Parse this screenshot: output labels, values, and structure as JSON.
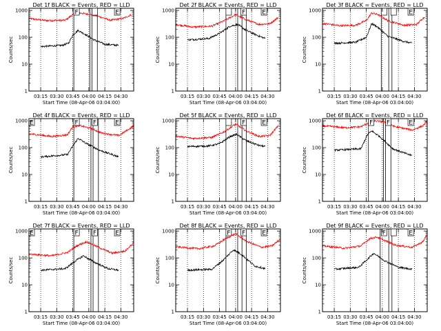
{
  "chart_data": [
    {
      "type": "line",
      "title": "Det 1f BLACK = Events, RED = LLD",
      "xlabel": "Start Time (08-Apr-06 03:04:00)",
      "ylabel": "Counts/sec",
      "x_ticks": [
        "03:15",
        "03:30",
        "03:45",
        "04:00",
        "04:15",
        "04:30"
      ],
      "y_ticks": [
        "1",
        "10",
        "100",
        "1000"
      ],
      "yscale": "log",
      "xlim": [
        "03:04",
        "04:42"
      ],
      "ylim": [
        1,
        1200
      ],
      "grid": "vertical dotted at major x ticks",
      "markers": [
        {
          "label": "F",
          "x": "03:46"
        },
        {
          "label": "",
          "x": "04:03"
        },
        {
          "label": "E",
          "x": "04:24"
        }
      ],
      "interval_lines": [
        "03:46",
        "04:01",
        "04:03",
        "04:08"
      ],
      "series": [
        {
          "color": "#ff0000",
          "x": [
            "03:04",
            "03:20",
            "03:38",
            "03:45",
            "03:52",
            "04:00",
            "04:08",
            "04:20",
            "04:32",
            "04:40"
          ],
          "values": [
            500,
            420,
            430,
            700,
            800,
            720,
            620,
            430,
            500,
            700
          ]
        },
        {
          "color": "#000000",
          "x": [
            "03:15",
            "03:35",
            "03:41",
            "03:45",
            "03:50",
            "03:58",
            "04:05",
            "04:15",
            "04:28"
          ],
          "values": [
            45,
            50,
            60,
            120,
            180,
            120,
            80,
            55,
            50
          ]
        }
      ]
    },
    {
      "type": "line",
      "title": "Det 2f BLACK = Events, RED = LLD",
      "xlabel": "Start Time (08-Apr-06 03:04:00)",
      "ylabel": "Counts/sec",
      "x_ticks": [
        "03:15",
        "03:30",
        "03:45",
        "04:00",
        "04:15",
        "04:30"
      ],
      "y_ticks": [
        "1",
        "10",
        "100",
        "1000"
      ],
      "yscale": "log",
      "xlim": [
        "03:04",
        "04:42"
      ],
      "ylim": [
        1,
        1200
      ],
      "grid": "vertical dotted at major x ticks",
      "markers": [
        {
          "label": "",
          "x": "03:51"
        },
        {
          "label": "F",
          "x": "04:05"
        },
        {
          "label": "E",
          "x": "04:24"
        }
      ],
      "interval_lines": [
        "03:51",
        "04:02",
        "04:06",
        "04:10"
      ],
      "series": [
        {
          "color": "#ff0000",
          "x": [
            "03:04",
            "03:20",
            "03:38",
            "03:50",
            "04:00",
            "04:10",
            "04:22",
            "04:32",
            "04:40"
          ],
          "values": [
            300,
            240,
            260,
            420,
            700,
            450,
            300,
            320,
            550
          ]
        },
        {
          "color": "#000000",
          "x": [
            "03:15",
            "03:35",
            "03:45",
            "03:55",
            "04:02",
            "04:10",
            "04:22",
            "04:28"
          ],
          "values": [
            80,
            90,
            140,
            260,
            300,
            180,
            110,
            90
          ]
        }
      ]
    },
    {
      "type": "line",
      "title": "Det 3f BLACK = Events, RED = LLD",
      "xlabel": "Start Time (08-Apr-06 03:04:00)",
      "ylabel": "Counts/sec",
      "x_ticks": [
        "03:15",
        "03:30",
        "03:45",
        "04:00",
        "04:15",
        "04:30"
      ],
      "y_ticks": [
        "1",
        "10",
        "100",
        "1000"
      ],
      "yscale": "log",
      "xlim": [
        "03:04",
        "04:42"
      ],
      "ylim": [
        1,
        1200
      ],
      "grid": "vertical dotted at major x ticks",
      "markers": [
        {
          "label": "",
          "x": "03:59"
        },
        {
          "label": "",
          "x": "04:08"
        },
        {
          "label": "E",
          "x": "04:24"
        }
      ],
      "interval_lines": [
        "03:59",
        "04:06",
        "04:09"
      ],
      "series": [
        {
          "color": "#ff0000",
          "x": [
            "03:04",
            "03:20",
            "03:35",
            "03:45",
            "03:50",
            "03:56",
            "04:05",
            "04:20",
            "04:32",
            "04:40"
          ],
          "values": [
            330,
            270,
            280,
            420,
            800,
            700,
            420,
            280,
            300,
            600
          ]
        },
        {
          "color": "#000000",
          "x": [
            "03:15",
            "03:35",
            "03:45",
            "03:50",
            "03:55",
            "04:05",
            "04:20",
            "04:28"
          ],
          "values": [
            60,
            65,
            100,
            320,
            250,
            110,
            70,
            60
          ]
        }
      ]
    },
    {
      "type": "line",
      "title": "Det 4f BLACK = Events, RED = LLD",
      "xlabel": "Start Time (08-Apr-06 03:04:00)",
      "ylabel": "Counts/sec",
      "x_ticks": [
        "03:15",
        "03:30",
        "03:45",
        "04:00",
        "04:15",
        "04:30"
      ],
      "y_ticks": [
        "1",
        "10",
        "100",
        "1000"
      ],
      "yscale": "log",
      "xlim": [
        "03:04",
        "04:42"
      ],
      "ylim": [
        1,
        1200
      ],
      "grid": "vertical dotted at major x ticks",
      "markers": [
        {
          "label": "E",
          "x": "03:04"
        },
        {
          "label": "F",
          "x": "03:46"
        },
        {
          "label": "F",
          "x": "04:03"
        },
        {
          "label": "E",
          "x": "04:24"
        }
      ],
      "interval_lines": [
        "03:46",
        "04:02",
        "04:04",
        "04:09"
      ],
      "series": [
        {
          "color": "#ff0000",
          "x": [
            "03:04",
            "03:25",
            "03:40",
            "03:45",
            "03:52",
            "04:02",
            "04:12",
            "04:28",
            "04:38",
            "04:42"
          ],
          "values": [
            330,
            260,
            300,
            600,
            650,
            520,
            350,
            280,
            500,
            650
          ]
        },
        {
          "color": "#000000",
          "x": [
            "03:15",
            "03:40",
            "03:46",
            "03:50",
            "03:58",
            "04:10",
            "04:22",
            "04:28"
          ],
          "values": [
            45,
            55,
            130,
            220,
            140,
            80,
            55,
            45
          ]
        }
      ]
    },
    {
      "type": "line",
      "title": "Det 5f BLACK = Events, RED = LLD",
      "xlabel": "Start Time (08-Apr-06 03:04:00)",
      "ylabel": "Counts/sec",
      "x_ticks": [
        "03:15",
        "03:30",
        "03:45",
        "04:00",
        "04:15",
        "04:30"
      ],
      "y_ticks": [
        "1",
        "10",
        "100",
        "1000"
      ],
      "yscale": "log",
      "xlim": [
        "03:04",
        "04:42"
      ],
      "ylim": [
        1,
        1200
      ],
      "grid": "vertical dotted at major x ticks",
      "markers": [
        {
          "label": "",
          "x": "03:51"
        },
        {
          "label": "F",
          "x": "04:05"
        },
        {
          "label": "E",
          "x": "04:24"
        }
      ],
      "interval_lines": [
        "03:51",
        "04:02",
        "04:06",
        "04:10"
      ],
      "series": [
        {
          "color": "#ff0000",
          "x": [
            "03:04",
            "03:20",
            "03:38",
            "03:50",
            "04:00",
            "04:10",
            "04:22",
            "04:32",
            "04:40"
          ],
          "values": [
            270,
            220,
            240,
            400,
            750,
            420,
            260,
            280,
            650
          ]
        },
        {
          "color": "#000000",
          "x": [
            "03:15",
            "03:35",
            "03:45",
            "03:55",
            "04:01",
            "04:10",
            "04:22",
            "04:28"
          ],
          "values": [
            110,
            115,
            140,
            260,
            310,
            180,
            120,
            110
          ]
        }
      ]
    },
    {
      "type": "line",
      "title": "Det 6f BLACK = Events, RED = LLD",
      "xlabel": "Start Time (08-Apr-06 03:04:00)",
      "ylabel": "Counts/sec",
      "x_ticks": [
        "03:15",
        "03:30",
        "03:45",
        "04:00",
        "04:15",
        "04:30"
      ],
      "y_ticks": [
        "1",
        "10",
        "100",
        "1000"
      ],
      "yscale": "log",
      "xlim": [
        "03:04",
        "04:42"
      ],
      "ylim": [
        1,
        1200
      ],
      "grid": "vertical dotted at major x ticks",
      "markers": [
        {
          "label": "F",
          "x": "03:47"
        },
        {
          "label": "F",
          "x": "04:03"
        },
        {
          "label": "E",
          "x": "04:24"
        }
      ],
      "interval_lines": [
        "03:47",
        "04:01",
        "04:03",
        "04:08"
      ],
      "series": [
        {
          "color": "#ff0000",
          "x": [
            "03:04",
            "03:25",
            "03:40",
            "03:46",
            "03:52",
            "04:02",
            "04:12",
            "04:28",
            "04:38",
            "04:42"
          ],
          "values": [
            650,
            550,
            600,
            800,
            1000,
            900,
            600,
            450,
            650,
            1000
          ]
        },
        {
          "color": "#000000",
          "x": [
            "03:15",
            "03:40",
            "03:46",
            "03:50",
            "03:58",
            "04:10",
            "04:22",
            "04:28"
          ],
          "values": [
            80,
            90,
            300,
            420,
            250,
            90,
            60,
            50
          ]
        }
      ]
    },
    {
      "type": "line",
      "title": "Det 7f BLACK = Events, RED = LLD",
      "xlabel": "Start Time (08-Apr-06 03:04:00)",
      "ylabel": "Counts/sec",
      "x_ticks": [
        "03:15",
        "03:30",
        "03:45",
        "04:00",
        "04:15",
        "04:30"
      ],
      "y_ticks": [
        "1",
        "10",
        "100",
        "1000"
      ],
      "yscale": "log",
      "xlim": [
        "03:04",
        "04:42"
      ],
      "ylim": [
        1,
        1200
      ],
      "grid": "vertical dotted at major x ticks",
      "markers": [
        {
          "label": "E",
          "x": "03:04"
        },
        {
          "label": "F",
          "x": "03:46"
        },
        {
          "label": "F",
          "x": "04:03"
        },
        {
          "label": "E",
          "x": "04:24"
        }
      ],
      "interval_lines": [
        "03:46",
        "04:02",
        "04:04",
        "04:09"
      ],
      "series": [
        {
          "color": "#ff0000",
          "x": [
            "03:04",
            "03:25",
            "03:40",
            "03:50",
            "03:58",
            "04:08",
            "04:22",
            "04:34",
            "04:42"
          ],
          "values": [
            140,
            120,
            160,
            300,
            400,
            260,
            150,
            180,
            380
          ]
        },
        {
          "color": "#000000",
          "x": [
            "03:15",
            "03:38",
            "03:48",
            "03:55",
            "04:05",
            "04:18",
            "04:28"
          ],
          "values": [
            35,
            40,
            80,
            120,
            70,
            40,
            35
          ]
        }
      ]
    },
    {
      "type": "line",
      "title": "Det 8f BLACK = Events, RED = LLD",
      "xlabel": "Start Time (08-Apr-06 03:04:00)",
      "ylabel": "Counts/sec",
      "x_ticks": [
        "03:15",
        "03:30",
        "03:45",
        "04:00",
        "04:15",
        "04:30"
      ],
      "y_ticks": [
        "1",
        "10",
        "100",
        "1000"
      ],
      "yscale": "log",
      "xlim": [
        "03:04",
        "04:42"
      ],
      "ylim": [
        1,
        1200
      ],
      "grid": "vertical dotted at major x ticks",
      "markers": [
        {
          "label": "F",
          "x": "03:51"
        },
        {
          "label": "F",
          "x": "04:05"
        },
        {
          "label": "E",
          "x": "04:24"
        }
      ],
      "interval_lines": [
        "03:51",
        "04:02",
        "04:06",
        "04:10"
      ],
      "series": [
        {
          "color": "#ff0000",
          "x": [
            "03:04",
            "03:25",
            "03:40",
            "03:50",
            "04:00",
            "04:10",
            "04:24",
            "04:34",
            "04:42"
          ],
          "values": [
            260,
            220,
            280,
            500,
            800,
            420,
            250,
            280,
            500
          ]
        },
        {
          "color": "#000000",
          "x": [
            "03:15",
            "03:38",
            "03:48",
            "03:58",
            "04:05",
            "04:18",
            "04:28"
          ],
          "values": [
            35,
            38,
            80,
            200,
            140,
            50,
            40
          ]
        }
      ]
    },
    {
      "type": "line",
      "title": "Det 9f BLACK = Events, RED = LLD",
      "xlabel": "Start Time (08-Apr-06 03:04:00)",
      "ylabel": "Counts/sec",
      "x_ticks": [
        "03:15",
        "03:30",
        "03:45",
        "04:00",
        "04:15",
        "04:30"
      ],
      "y_ticks": [
        "1",
        "10",
        "100",
        "1000"
      ],
      "yscale": "log",
      "xlim": [
        "03:04",
        "04:42"
      ],
      "ylim": [
        1,
        1200
      ],
      "grid": "vertical dotted at major x ticks",
      "markers": [
        {
          "label": "F",
          "x": "03:59"
        },
        {
          "label": "",
          "x": "04:08"
        },
        {
          "label": "E",
          "x": "04:24"
        }
      ],
      "interval_lines": [
        "03:58",
        "04:06",
        "04:09"
      ],
      "series": [
        {
          "color": "#ff0000",
          "x": [
            "03:04",
            "03:25",
            "03:40",
            "03:48",
            "03:55",
            "04:02",
            "04:12",
            "04:28",
            "04:38",
            "04:42"
          ],
          "values": [
            280,
            230,
            280,
            520,
            600,
            450,
            300,
            250,
            400,
            800
          ]
        },
        {
          "color": "#000000",
          "x": [
            "03:15",
            "03:38",
            "03:46",
            "03:52",
            "04:02",
            "04:15",
            "04:28"
          ],
          "values": [
            38,
            45,
            90,
            150,
            80,
            45,
            38
          ]
        }
      ]
    }
  ]
}
